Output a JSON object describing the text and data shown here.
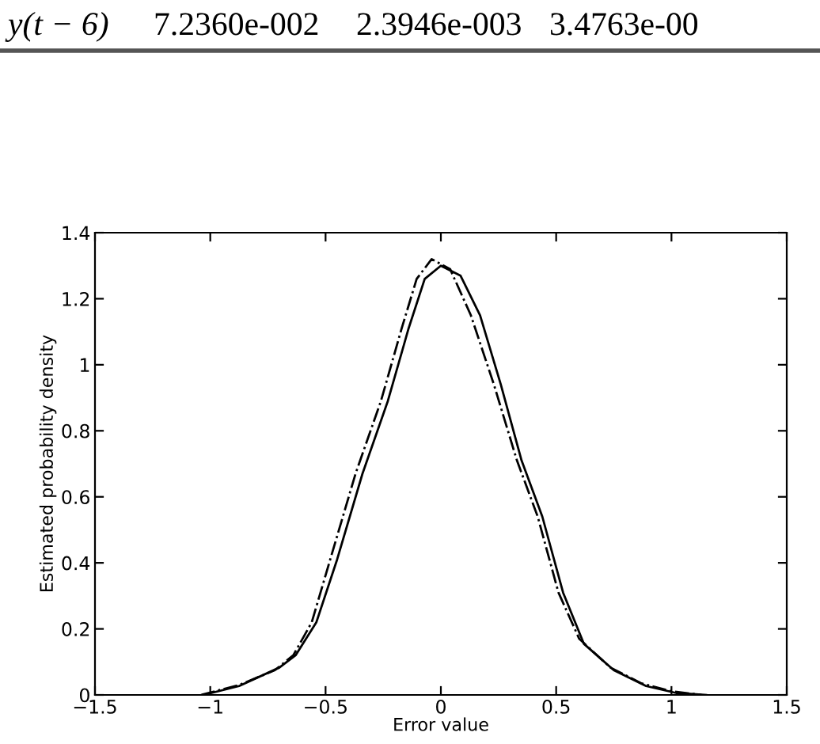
{
  "chart_data": {
    "type": "line",
    "xlabel": "Error value",
    "ylabel": "Estimated probability density",
    "annotations": [
      "y(t − 6)",
      "7.2360e-002",
      "2.3946e-003",
      "3.4763e-00"
    ],
    "xlim": [
      -1.5,
      1.5
    ],
    "ylim": [
      0,
      1.4
    ],
    "xticks": [
      {
        "value": -1.5,
        "label": "−1.5"
      },
      {
        "value": -1,
        "label": "−1"
      },
      {
        "value": -0.5,
        "label": "−0.5"
      },
      0,
      0.5,
      1,
      1.5
    ],
    "yticks": [
      0,
      0.2,
      0.4,
      0.6,
      0.8,
      1,
      1.2,
      1.4
    ],
    "grid": false,
    "marker": "none",
    "series": [
      {
        "color": "#000000",
        "line_style": "solid",
        "x": [
          -1.03,
          -0.875,
          -0.7,
          -0.63,
          -0.54,
          -0.45,
          -0.34,
          -0.23,
          -0.14,
          -0.07,
          0,
          0.085,
          0.17,
          0.26,
          0.35,
          0.44,
          0.53,
          0.62,
          0.75,
          0.89,
          1.02,
          1.15
        ],
        "values": [
          0,
          0.027,
          0.083,
          0.12,
          0.22,
          0.41,
          0.67,
          0.89,
          1.11,
          1.26,
          1.3,
          1.27,
          1.15,
          0.94,
          0.71,
          0.54,
          0.31,
          0.155,
          0.075,
          0.027,
          0.006,
          0
        ]
      },
      {
        "color": "#000000",
        "line_style": "dashed",
        "x": [
          -1.04,
          -0.875,
          -0.72,
          -0.64,
          -0.56,
          -0.48,
          -0.37,
          -0.26,
          -0.17,
          -0.105,
          -0.04,
          0.04,
          0.13,
          0.23,
          0.33,
          0.42,
          0.51,
          0.6,
          0.735,
          0.87,
          1.0,
          1.13
        ],
        "values": [
          0,
          0.03,
          0.075,
          0.12,
          0.22,
          0.41,
          0.67,
          0.89,
          1.11,
          1.26,
          1.32,
          1.29,
          1.15,
          0.94,
          0.71,
          0.54,
          0.31,
          0.17,
          0.083,
          0.035,
          0.011,
          0
        ]
      }
    ]
  }
}
